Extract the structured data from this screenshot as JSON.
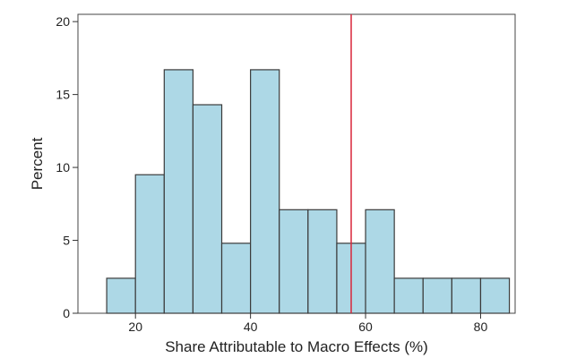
{
  "chart_data": {
    "type": "bar",
    "title": "",
    "xlabel": "Share Attributable to Macro Effects (%)",
    "ylabel": "Percent",
    "xlim": [
      10,
      86
    ],
    "ylim": [
      0,
      20.5
    ],
    "xticks": [
      20,
      40,
      60,
      80
    ],
    "yticks": [
      0,
      5,
      10,
      15,
      20
    ],
    "bin_width": 5,
    "bins": [
      {
        "start": 15,
        "end": 20,
        "value": 2.4
      },
      {
        "start": 20,
        "end": 25,
        "value": 9.5
      },
      {
        "start": 25,
        "end": 30,
        "value": 16.7
      },
      {
        "start": 30,
        "end": 35,
        "value": 14.3
      },
      {
        "start": 35,
        "end": 40,
        "value": 4.8
      },
      {
        "start": 40,
        "end": 45,
        "value": 16.7
      },
      {
        "start": 45,
        "end": 50,
        "value": 7.1
      },
      {
        "start": 50,
        "end": 55,
        "value": 7.1
      },
      {
        "start": 55,
        "end": 60,
        "value": 4.8
      },
      {
        "start": 60,
        "end": 65,
        "value": 7.1
      },
      {
        "start": 65,
        "end": 70,
        "value": 2.4
      },
      {
        "start": 70,
        "end": 75,
        "value": 2.4
      },
      {
        "start": 75,
        "end": 80,
        "value": 2.4
      },
      {
        "start": 80,
        "end": 85,
        "value": 2.4
      }
    ],
    "reference_line": {
      "x": 57.5,
      "color": "#d9263a"
    },
    "colors": {
      "bar_fill": "#add8e6",
      "bar_stroke": "#3b3b3b",
      "axis": "#333333"
    },
    "grid": false,
    "legend": "none"
  }
}
